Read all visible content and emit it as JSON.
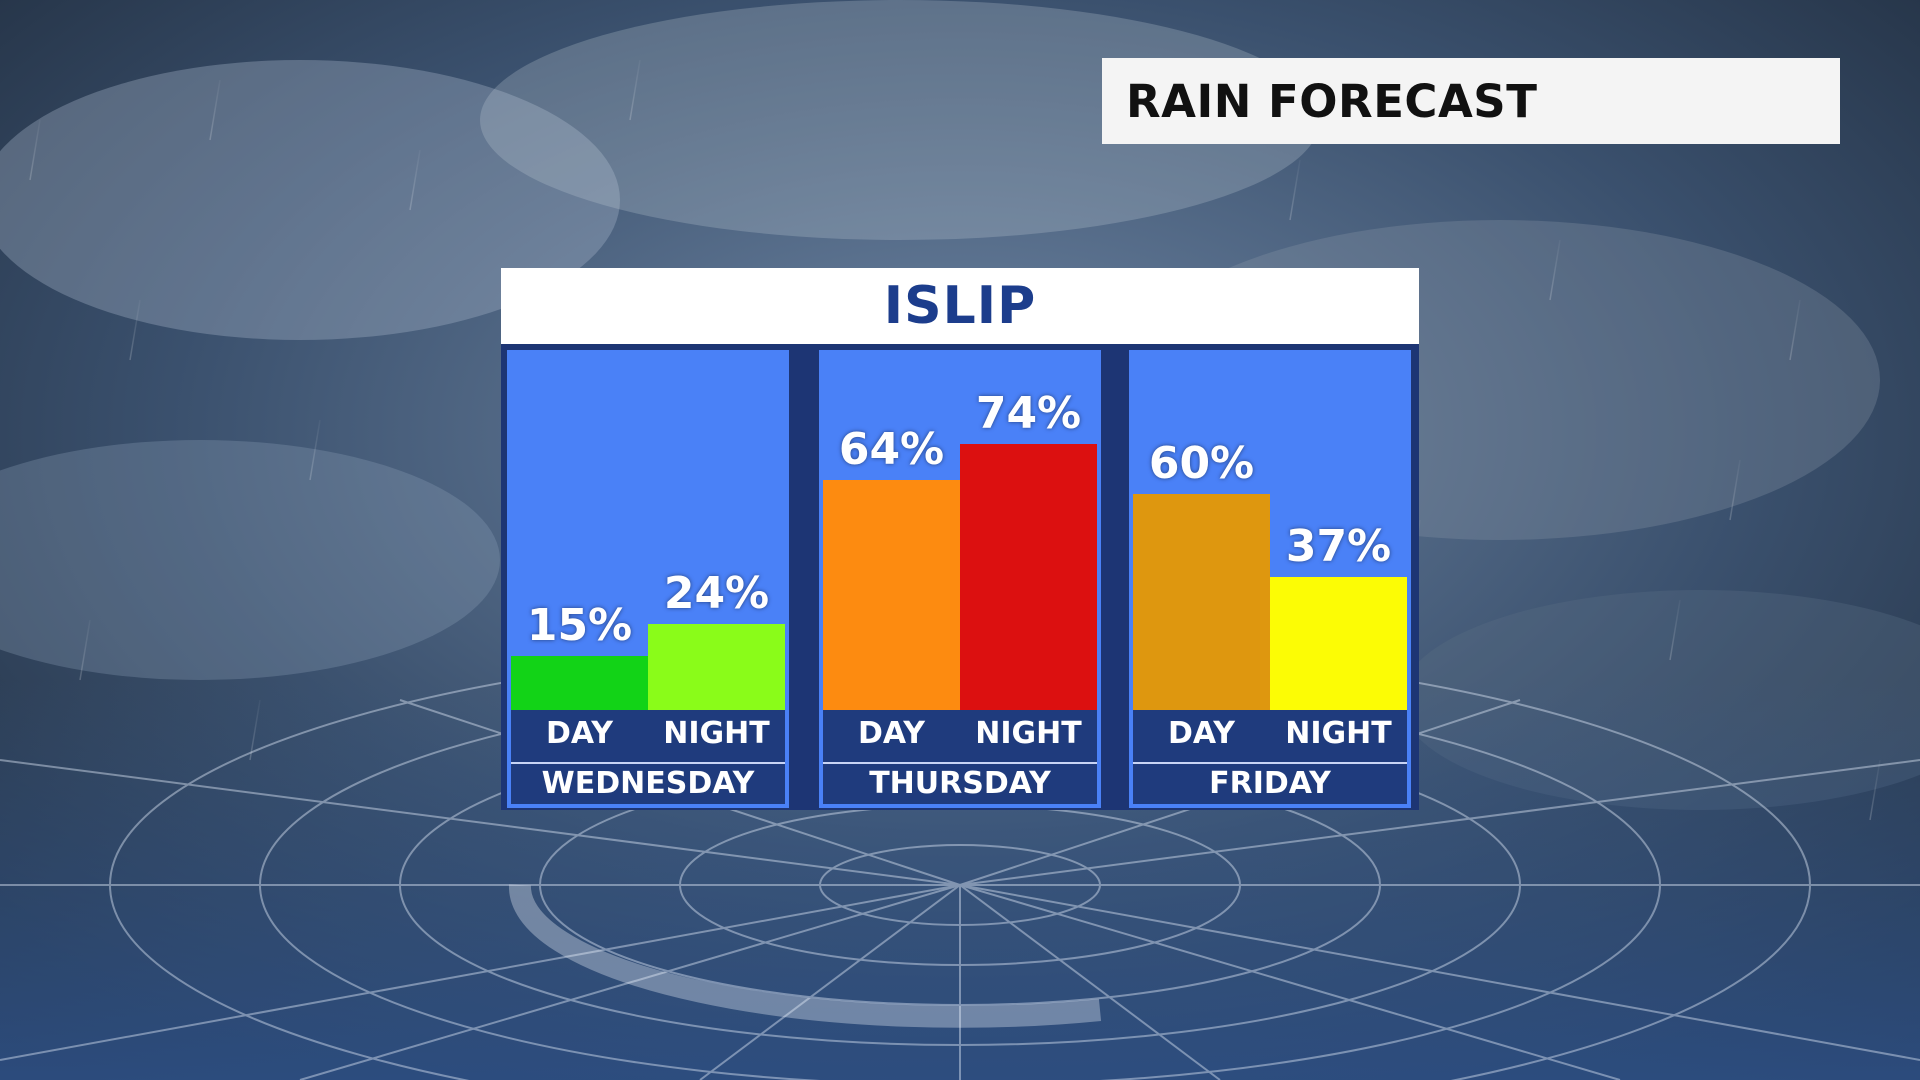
{
  "header": {
    "title": "RAIN FORECAST"
  },
  "location": "ISLIP",
  "chart_data": {
    "type": "bar",
    "title": "ISLIP",
    "ylabel": "",
    "ylim": [
      0,
      100
    ],
    "groups": [
      {
        "day": "WEDNESDAY",
        "periods": [
          {
            "label": "DAY",
            "value": 15,
            "display": "15%",
            "color": "#12d317"
          },
          {
            "label": "NIGHT",
            "value": 24,
            "display": "24%",
            "color": "#8afc19"
          }
        ]
      },
      {
        "day": "THURSDAY",
        "periods": [
          {
            "label": "DAY",
            "value": 64,
            "display": "64%",
            "color": "#fd8b10"
          },
          {
            "label": "NIGHT",
            "value": 74,
            "display": "74%",
            "color": "#dc1010"
          }
        ]
      },
      {
        "day": "FRIDAY",
        "periods": [
          {
            "label": "DAY",
            "value": 60,
            "display": "60%",
            "color": "#de970f"
          },
          {
            "label": "NIGHT",
            "value": 37,
            "display": "37%",
            "color": "#fcfc05"
          }
        ]
      }
    ]
  }
}
